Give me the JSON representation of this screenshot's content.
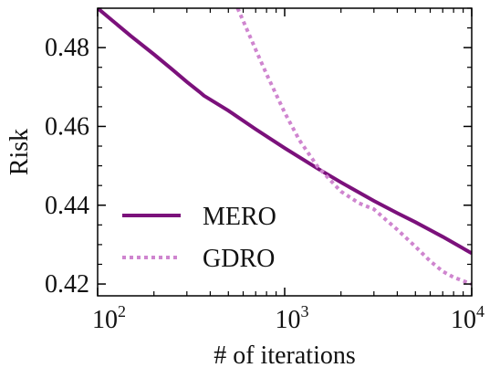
{
  "chart_data": {
    "type": "line",
    "xlabel": "# of iterations",
    "ylabel": "Risk",
    "xscale": "log",
    "xlim": [
      100,
      10000
    ],
    "ylim": [
      0.417,
      0.49
    ],
    "x_ticks": [
      {
        "value": 100,
        "base": "10",
        "exp": "2"
      },
      {
        "value": 1000,
        "base": "10",
        "exp": "3"
      },
      {
        "value": 10000,
        "base": "10",
        "exp": "4"
      }
    ],
    "y_ticks": [
      {
        "value": 0.42,
        "label": "0.42"
      },
      {
        "value": 0.44,
        "label": "0.44"
      },
      {
        "value": 0.46,
        "label": "0.46"
      },
      {
        "value": 0.48,
        "label": "0.48"
      }
    ],
    "legend_position": "lower-left",
    "series": [
      {
        "name": "MERO",
        "style": "solid",
        "color": "#7b117b",
        "x": [
          100,
          150,
          200,
          250,
          300,
          350,
          370,
          500,
          700,
          1000,
          1500,
          2000,
          3000,
          4000,
          5000,
          7000,
          10000
        ],
        "y": [
          0.49,
          0.483,
          0.4783,
          0.4745,
          0.4713,
          0.4688,
          0.4678,
          0.464,
          0.4593,
          0.4545,
          0.4493,
          0.4458,
          0.4411,
          0.438,
          0.4357,
          0.432,
          0.4278
        ]
      },
      {
        "name": "GDRO",
        "style": "dotted",
        "color": "#cf85cf",
        "x": [
          560,
          600,
          700,
          800,
          1000,
          1200,
          1500,
          2000,
          2500,
          3000,
          3500,
          4000,
          5000,
          6000,
          7000,
          8000,
          10000
        ],
        "y": [
          0.49,
          0.4868,
          0.4795,
          0.4733,
          0.4635,
          0.4565,
          0.4498,
          0.4435,
          0.4405,
          0.439,
          0.4362,
          0.4338,
          0.4295,
          0.4258,
          0.4232,
          0.4217,
          0.42
        ]
      }
    ]
  }
}
